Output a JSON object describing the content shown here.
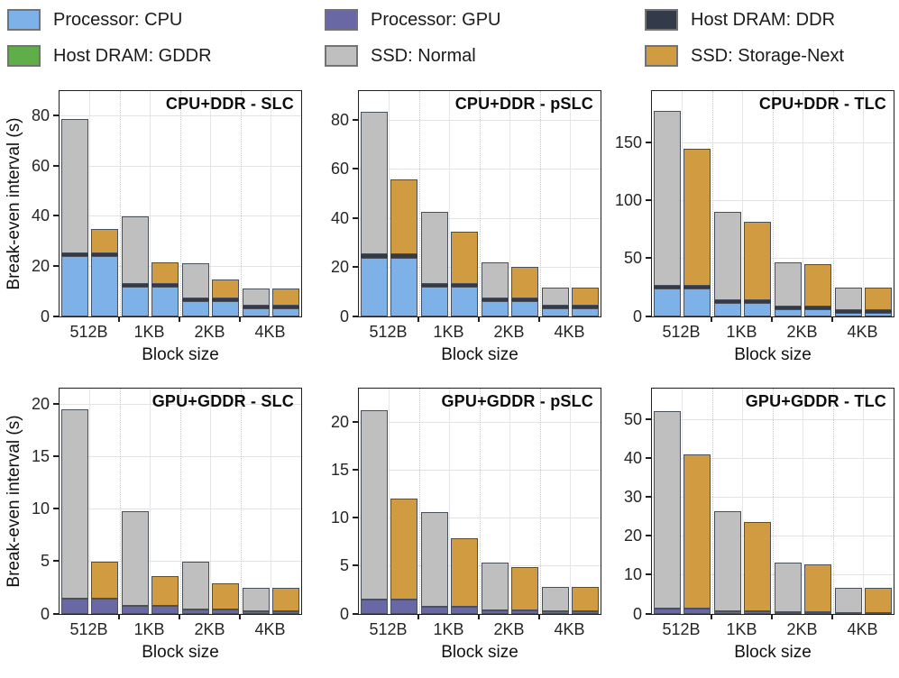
{
  "colors": {
    "cpu": "#7fb1e9",
    "gpu": "#6a67a5",
    "ddr": "#333b4b",
    "gddr": "#5fae49",
    "ssd_normal": "#bfbfbf",
    "ssd_storage_next": "#d09b41"
  },
  "legend": {
    "items": [
      {
        "label": "Processor: CPU",
        "color_key": "cpu"
      },
      {
        "label": "Processor: GPU",
        "color_key": "gpu"
      },
      {
        "label": "Host DRAM: DDR",
        "color_key": "ddr"
      },
      {
        "label": "Host DRAM: GDDR",
        "color_key": "gddr"
      },
      {
        "label": "SSD: Normal",
        "color_key": "ssd_normal"
      },
      {
        "label": "SSD: Storage-Next",
        "color_key": "ssd_storage_next"
      }
    ]
  },
  "chart_data": [
    {
      "type": "stacked-bar",
      "title": "CPU+DDR - SLC",
      "xlabel": "Block size",
      "ylabel": "Break-even interval (s)",
      "ylim": [
        0,
        90
      ],
      "yticks": [
        0,
        20,
        40,
        60,
        80
      ],
      "categories": [
        "512B",
        "1KB",
        "2KB",
        "4KB"
      ],
      "processor": "cpu",
      "dram": "ddr",
      "series_labels": {
        "normal": "SSD: Normal",
        "storage_next": "SSD: Storage-Next"
      },
      "groups": [
        {
          "category": "512B",
          "normal": {
            "processor": 24,
            "dram": 1.3,
            "ssd": 53.7
          },
          "storage_next": {
            "processor": 24,
            "dram": 1.3,
            "ssd": 9.7
          }
        },
        {
          "category": "1KB",
          "normal": {
            "processor": 12,
            "dram": 1.0,
            "ssd": 27.0
          },
          "storage_next": {
            "processor": 12,
            "dram": 1.0,
            "ssd": 8.5
          }
        },
        {
          "category": "2KB",
          "normal": {
            "processor": 6.3,
            "dram": 0.9,
            "ssd": 13.8
          },
          "storage_next": {
            "processor": 6.3,
            "dram": 0.9,
            "ssd": 7.3
          }
        },
        {
          "category": "4KB",
          "normal": {
            "processor": 3.3,
            "dram": 0.8,
            "ssd": 6.9
          },
          "storage_next": {
            "processor": 3.3,
            "dram": 0.8,
            "ssd": 6.9
          }
        }
      ]
    },
    {
      "type": "stacked-bar",
      "title": "CPU+DDR - pSLC",
      "xlabel": "Block size",
      "ylim": [
        0,
        92
      ],
      "yticks": [
        0,
        20,
        40,
        60,
        80
      ],
      "categories": [
        "512B",
        "1KB",
        "2KB",
        "4KB"
      ],
      "processor": "cpu",
      "dram": "ddr",
      "series_labels": {
        "normal": "SSD: Normal",
        "storage_next": "SSD: Storage-Next"
      },
      "groups": [
        {
          "category": "512B",
          "normal": {
            "processor": 24,
            "dram": 1.3,
            "ssd": 58.2
          },
          "storage_next": {
            "processor": 24,
            "dram": 1.3,
            "ssd": 30.7
          }
        },
        {
          "category": "1KB",
          "normal": {
            "processor": 12,
            "dram": 1.0,
            "ssd": 29.5
          },
          "storage_next": {
            "processor": 12,
            "dram": 1.0,
            "ssd": 21.5
          }
        },
        {
          "category": "2KB",
          "normal": {
            "processor": 6.3,
            "dram": 0.9,
            "ssd": 14.8
          },
          "storage_next": {
            "processor": 6.3,
            "dram": 0.9,
            "ssd": 12.8
          }
        },
        {
          "category": "4KB",
          "normal": {
            "processor": 3.3,
            "dram": 0.8,
            "ssd": 7.4
          },
          "storage_next": {
            "processor": 3.3,
            "dram": 0.8,
            "ssd": 7.4
          }
        }
      ]
    },
    {
      "type": "stacked-bar",
      "title": "CPU+DDR - TLC",
      "xlabel": "Block size",
      "ylim": [
        0,
        195
      ],
      "yticks": [
        0,
        50,
        100,
        150
      ],
      "categories": [
        "512B",
        "1KB",
        "2KB",
        "4KB"
      ],
      "processor": "cpu",
      "dram": "ddr",
      "series_labels": {
        "normal": "SSD: Normal",
        "storage_next": "SSD: Storage-Next"
      },
      "groups": [
        {
          "category": "512B",
          "normal": {
            "processor": 24,
            "dram": 1.5,
            "ssd": 151.5
          },
          "storage_next": {
            "processor": 24,
            "dram": 1.5,
            "ssd": 118.5
          }
        },
        {
          "category": "1KB",
          "normal": {
            "processor": 12,
            "dram": 1.5,
            "ssd": 76.5
          },
          "storage_next": {
            "processor": 12,
            "dram": 1.5,
            "ssd": 67.5
          }
        },
        {
          "category": "2KB",
          "normal": {
            "processor": 6.3,
            "dram": 1.2,
            "ssd": 38.5
          },
          "storage_next": {
            "processor": 6.3,
            "dram": 1.2,
            "ssd": 36.5
          }
        },
        {
          "category": "4KB",
          "normal": {
            "processor": 3.3,
            "dram": 1.0,
            "ssd": 19.2
          },
          "storage_next": {
            "processor": 3.3,
            "dram": 1.0,
            "ssd": 19.2
          }
        }
      ]
    },
    {
      "type": "stacked-bar",
      "title": "GPU+GDDR - SLC",
      "xlabel": "Block size",
      "ylabel": "Break-even interval (s)",
      "ylim": [
        0,
        21.5
      ],
      "yticks": [
        0,
        5,
        10,
        15,
        20
      ],
      "categories": [
        "512B",
        "1KB",
        "2KB",
        "4KB"
      ],
      "processor": "gpu",
      "dram": "gddr",
      "series_labels": {
        "normal": "SSD: Normal",
        "storage_next": "SSD: Storage-Next"
      },
      "groups": [
        {
          "category": "512B",
          "normal": {
            "processor": 1.5,
            "dram": 0,
            "ssd": 18.0
          },
          "storage_next": {
            "processor": 1.5,
            "dram": 0,
            "ssd": 3.5
          }
        },
        {
          "category": "1KB",
          "normal": {
            "processor": 0.75,
            "dram": 0,
            "ssd": 9.05
          },
          "storage_next": {
            "processor": 0.75,
            "dram": 0,
            "ssd": 2.85
          }
        },
        {
          "category": "2KB",
          "normal": {
            "processor": 0.4,
            "dram": 0,
            "ssd": 4.6
          },
          "storage_next": {
            "processor": 0.4,
            "dram": 0,
            "ssd": 2.5
          }
        },
        {
          "category": "4KB",
          "normal": {
            "processor": 0.25,
            "dram": 0,
            "ssd": 2.25
          },
          "storage_next": {
            "processor": 0.25,
            "dram": 0,
            "ssd": 2.25
          }
        }
      ]
    },
    {
      "type": "stacked-bar",
      "title": "GPU+GDDR - pSLC",
      "xlabel": "Block size",
      "ylim": [
        0,
        23.5
      ],
      "yticks": [
        0,
        5,
        10,
        15,
        20
      ],
      "categories": [
        "512B",
        "1KB",
        "2KB",
        "4KB"
      ],
      "processor": "gpu",
      "dram": "gddr",
      "series_labels": {
        "normal": "SSD: Normal",
        "storage_next": "SSD: Storage-Next"
      },
      "groups": [
        {
          "category": "512B",
          "normal": {
            "processor": 1.5,
            "dram": 0,
            "ssd": 19.7
          },
          "storage_next": {
            "processor": 1.5,
            "dram": 0,
            "ssd": 10.5
          }
        },
        {
          "category": "1KB",
          "normal": {
            "processor": 0.8,
            "dram": 0,
            "ssd": 9.8
          },
          "storage_next": {
            "processor": 0.8,
            "dram": 0,
            "ssd": 7.1
          }
        },
        {
          "category": "2KB",
          "normal": {
            "processor": 0.4,
            "dram": 0,
            "ssd": 5.0
          },
          "storage_next": {
            "processor": 0.4,
            "dram": 0,
            "ssd": 4.5
          }
        },
        {
          "category": "4KB",
          "normal": {
            "processor": 0.25,
            "dram": 0,
            "ssd": 2.55
          },
          "storage_next": {
            "processor": 0.25,
            "dram": 0,
            "ssd": 2.55
          }
        }
      ]
    },
    {
      "type": "stacked-bar",
      "title": "GPU+GDDR - TLC",
      "xlabel": "Block size",
      "ylim": [
        0,
        58
      ],
      "yticks": [
        0,
        10,
        20,
        30,
        40,
        50
      ],
      "categories": [
        "512B",
        "1KB",
        "2KB",
        "4KB"
      ],
      "processor": "gpu",
      "dram": "gddr",
      "series_labels": {
        "normal": "SSD: Normal",
        "storage_next": "SSD: Storage-Next"
      },
      "groups": [
        {
          "category": "512B",
          "normal": {
            "processor": 1.4,
            "dram": 0,
            "ssd": 50.9
          },
          "storage_next": {
            "processor": 1.4,
            "dram": 0,
            "ssd": 39.6
          }
        },
        {
          "category": "1KB",
          "normal": {
            "processor": 0.8,
            "dram": 0,
            "ssd": 25.6
          },
          "storage_next": {
            "processor": 0.8,
            "dram": 0,
            "ssd": 22.8
          }
        },
        {
          "category": "2KB",
          "normal": {
            "processor": 0.5,
            "dram": 0,
            "ssd": 12.8
          },
          "storage_next": {
            "processor": 0.5,
            "dram": 0,
            "ssd": 12.3
          }
        },
        {
          "category": "4KB",
          "normal": {
            "processor": 0.3,
            "dram": 0,
            "ssd": 6.5
          },
          "storage_next": {
            "processor": 0.3,
            "dram": 0,
            "ssd": 6.5
          }
        }
      ]
    }
  ]
}
